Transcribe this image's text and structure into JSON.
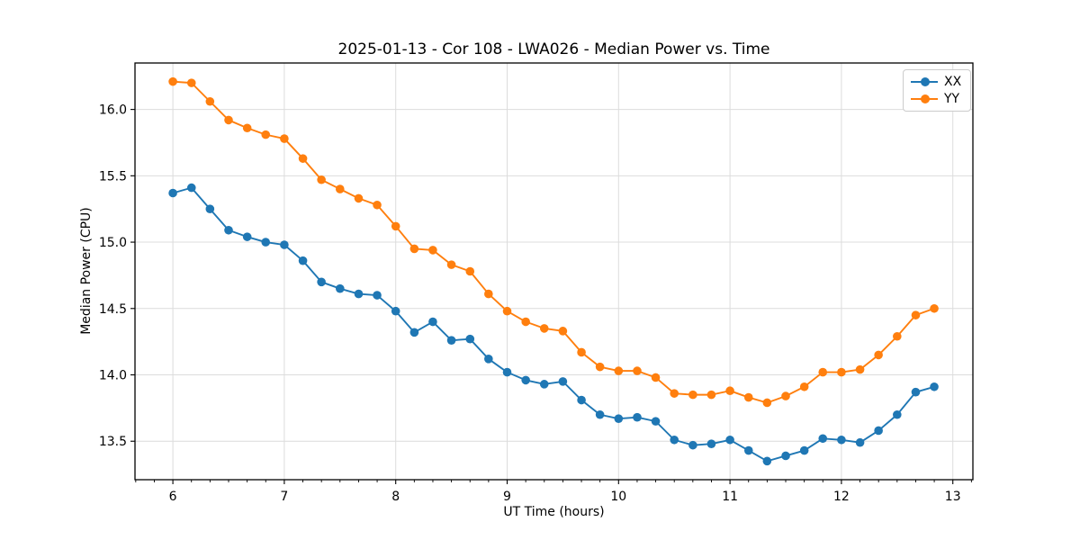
{
  "chart_data": {
    "type": "line",
    "title": "2025-01-13 - Cor 108 - LWA026 - Median Power vs. Time",
    "xlabel": "UT Time (hours)",
    "ylabel": "Median Power (CPU)",
    "xlim": [
      5.66,
      13.18
    ],
    "ylim": [
      13.21,
      16.35
    ],
    "x_ticks": [
      6,
      7,
      8,
      9,
      10,
      11,
      12,
      13
    ],
    "y_ticks": [
      13.5,
      14.0,
      14.5,
      15.0,
      15.5,
      16.0
    ],
    "x_minor_tick_step": 0.1666667,
    "grid": true,
    "grid_color": "#dcdcdc",
    "legend": {
      "position": "upper right",
      "entries": [
        "XX",
        "YY"
      ]
    },
    "x": [
      6.0,
      6.167,
      6.333,
      6.5,
      6.667,
      6.833,
      7.0,
      7.167,
      7.333,
      7.5,
      7.667,
      7.833,
      8.0,
      8.167,
      8.333,
      8.5,
      8.667,
      8.833,
      9.0,
      9.167,
      9.333,
      9.5,
      9.667,
      9.833,
      10.0,
      10.167,
      10.333,
      10.5,
      10.667,
      10.833,
      11.0,
      11.167,
      11.333,
      11.5,
      11.667,
      11.833,
      12.0,
      12.167,
      12.333,
      12.5,
      12.667,
      12.833
    ],
    "series": [
      {
        "name": "XX",
        "color": "#1f77b4",
        "values": [
          15.37,
          15.41,
          15.25,
          15.09,
          15.04,
          15.0,
          14.98,
          14.86,
          14.7,
          14.65,
          14.61,
          14.6,
          14.48,
          14.32,
          14.4,
          14.26,
          14.27,
          14.12,
          14.02,
          13.96,
          13.93,
          13.95,
          13.81,
          13.7,
          13.67,
          13.68,
          13.65,
          13.51,
          13.47,
          13.48,
          13.51,
          13.43,
          13.35,
          13.39,
          13.43,
          13.52,
          13.51,
          13.49,
          13.58,
          13.7,
          13.87,
          13.91
        ]
      },
      {
        "name": "YY",
        "color": "#ff7f0e",
        "values": [
          16.21,
          16.2,
          16.06,
          15.92,
          15.86,
          15.81,
          15.78,
          15.63,
          15.47,
          15.4,
          15.33,
          15.28,
          15.12,
          14.95,
          14.94,
          14.83,
          14.78,
          14.61,
          14.48,
          14.4,
          14.35,
          14.33,
          14.17,
          14.06,
          14.03,
          14.03,
          13.98,
          13.86,
          13.85,
          13.85,
          13.88,
          13.83,
          13.79,
          13.84,
          13.91,
          14.02,
          14.02,
          14.04,
          14.15,
          14.29,
          14.45,
          14.5
        ]
      }
    ]
  }
}
